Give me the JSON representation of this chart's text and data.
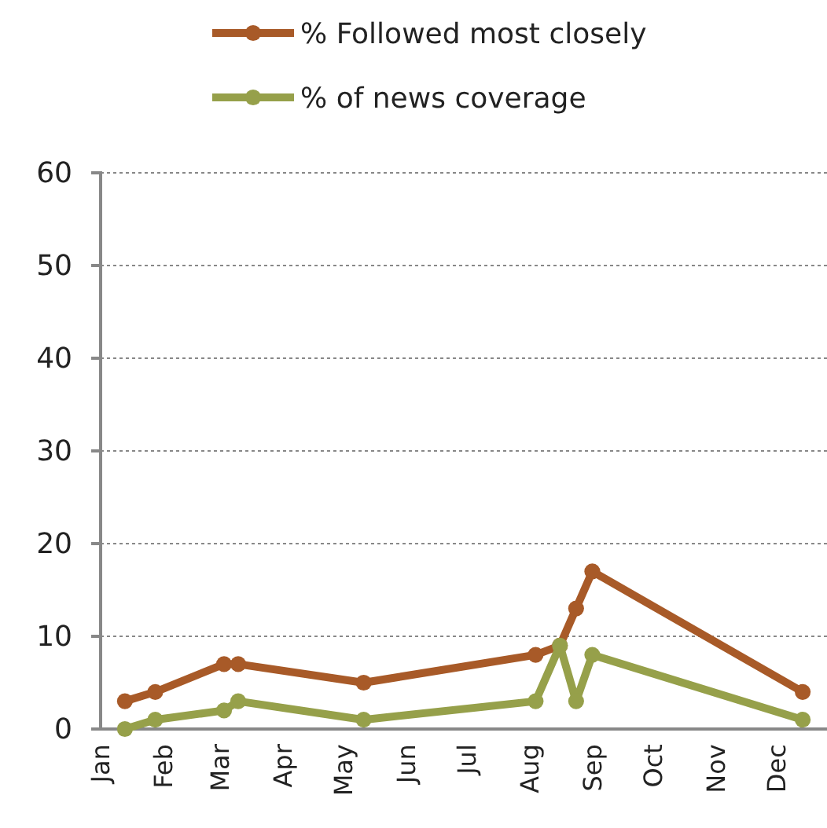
{
  "chart_data": {
    "type": "line",
    "x": [
      "--01-13",
      "--01-28",
      "--03-03",
      "--03-10",
      "--05-11",
      "--08-04",
      "--08-16",
      "--08-24",
      "--09-01",
      "--12-14"
    ],
    "series": [
      {
        "name": "% Followed most closely",
        "color": "#a85a28",
        "values": [
          3,
          4,
          7,
          7,
          5,
          8,
          9,
          13,
          17,
          4
        ]
      },
      {
        "name": "% of news coverage",
        "color": "#96a04a",
        "values": [
          0,
          1,
          2,
          3,
          1,
          3,
          9,
          3,
          8,
          1
        ]
      }
    ],
    "xlim": [
      "--01-01",
      "--12-26"
    ],
    "xticks": [
      {
        "value": "--01-01",
        "label": "Jan"
      },
      {
        "value": "--02-01",
        "label": "Feb"
      },
      {
        "value": "--03-01",
        "label": "Mar"
      },
      {
        "value": "--04-01",
        "label": "Apr"
      },
      {
        "value": "--05-01",
        "label": "May"
      },
      {
        "value": "--06-01",
        "label": "Jun"
      },
      {
        "value": "--07-01",
        "label": "Jul"
      },
      {
        "value": "--08-01",
        "label": "Aug"
      },
      {
        "value": "--09-01",
        "label": "Sep"
      },
      {
        "value": "--10-01",
        "label": "Oct"
      },
      {
        "value": "--11-01",
        "label": "Nov"
      },
      {
        "value": "--12-01",
        "label": "Dec"
      }
    ],
    "ylim": [
      0,
      60
    ],
    "yticks": [
      0,
      10,
      20,
      30,
      40,
      50,
      60
    ],
    "grid": "y",
    "legend": "top",
    "marker": "circle",
    "line_style": "solid"
  }
}
